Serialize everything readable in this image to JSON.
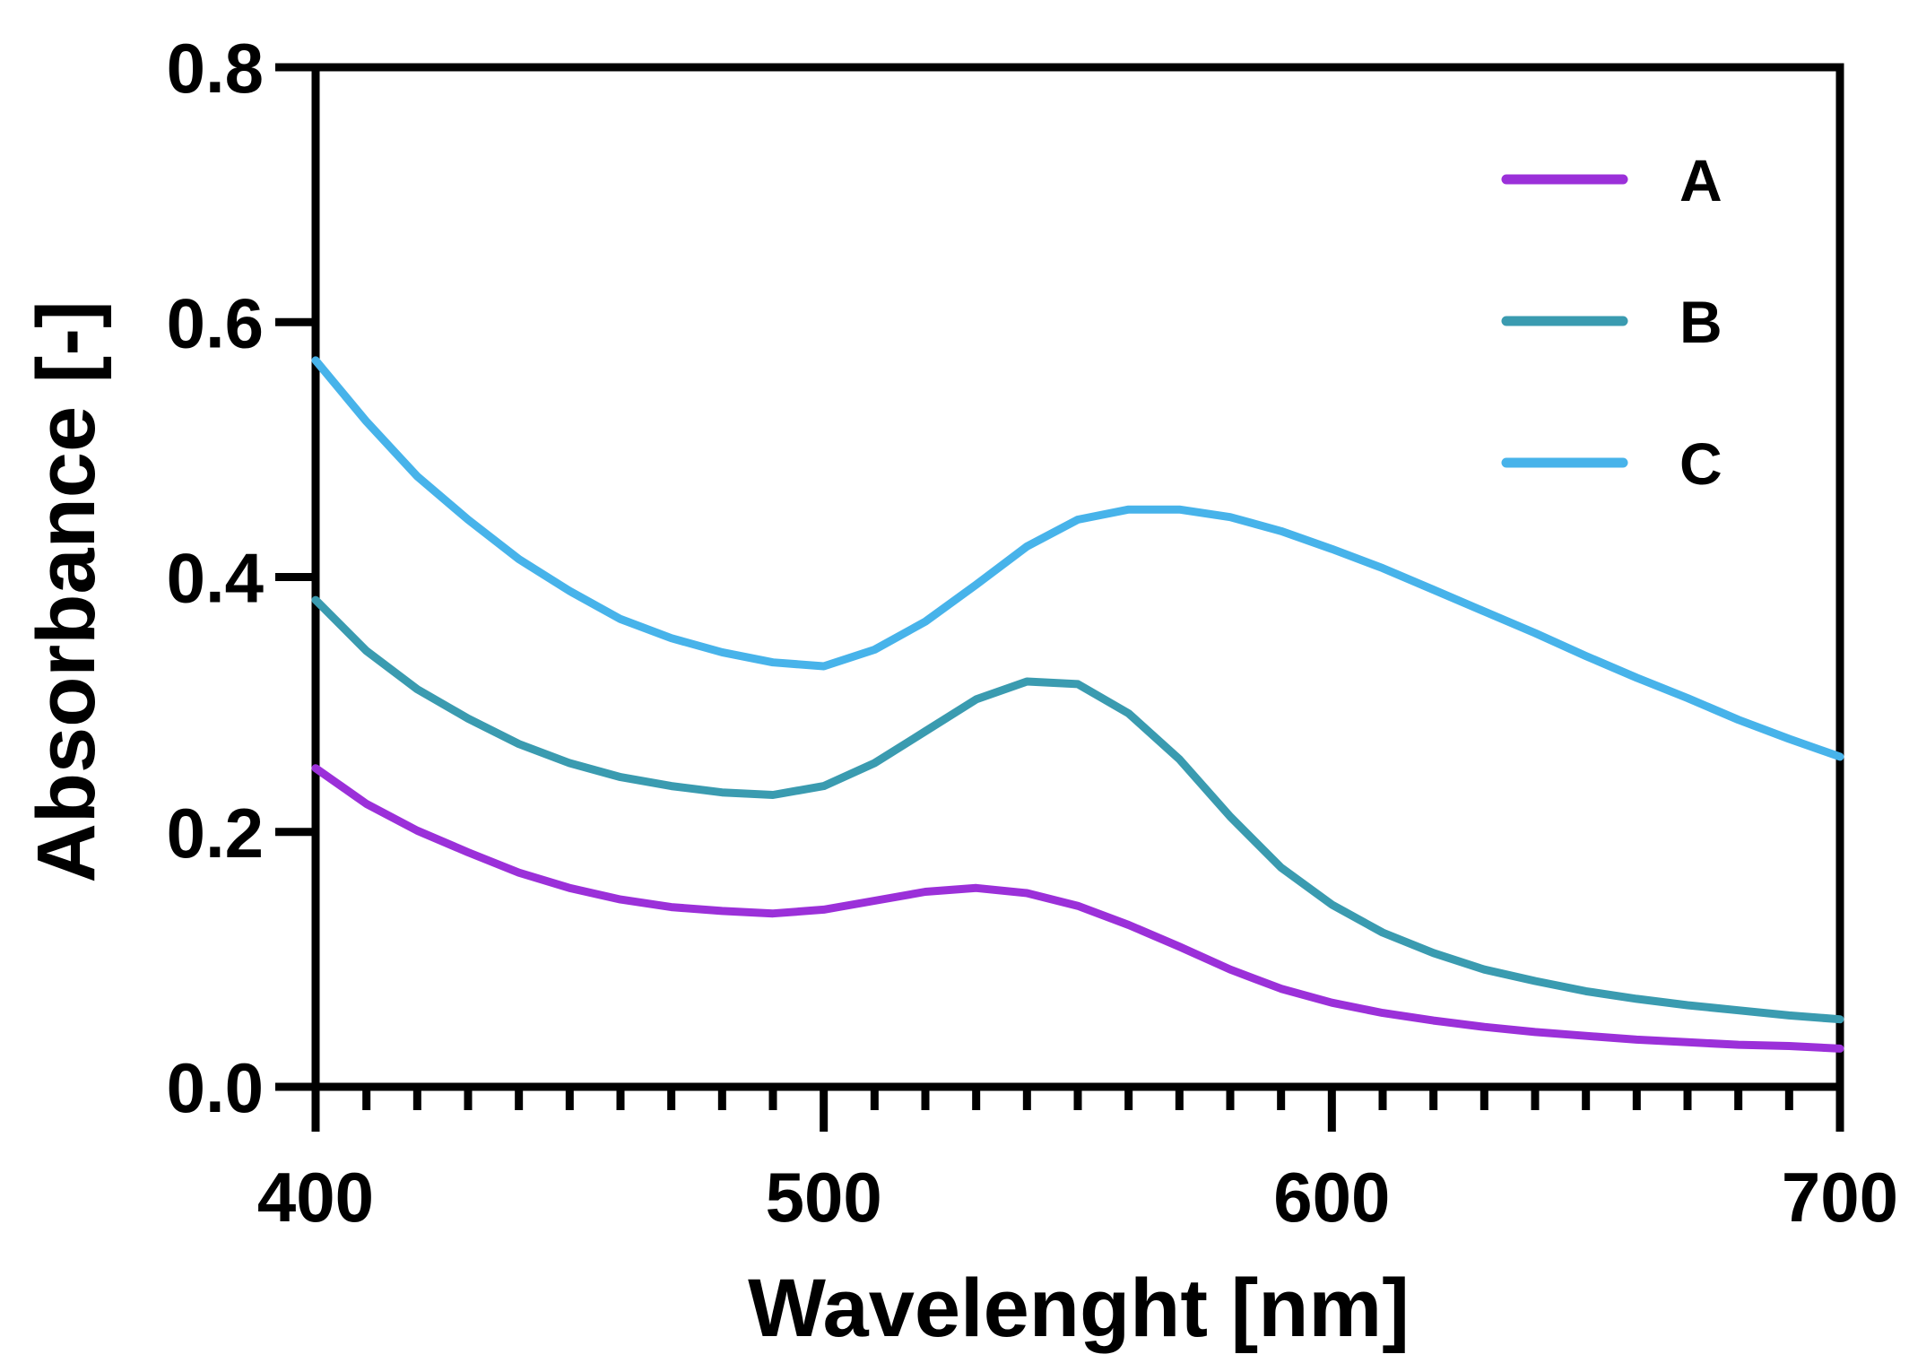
{
  "chart_data": {
    "type": "line",
    "title": "",
    "xlabel": "Wavelenght [nm]",
    "ylabel": "Absorbance [-]",
    "xlim": [
      400,
      700
    ],
    "ylim": [
      0.0,
      0.8
    ],
    "x_ticks": [
      400,
      500,
      600,
      700
    ],
    "x_tick_labels": [
      "400",
      "500",
      "600",
      "700"
    ],
    "x_minor_step": 10,
    "y_ticks": [
      0.0,
      0.2,
      0.4,
      0.6,
      0.8
    ],
    "y_tick_labels": [
      "0.0",
      "0.2",
      "0.4",
      "0.6",
      "0.8"
    ],
    "grid": false,
    "legend_position": "top-right",
    "series": [
      {
        "name": "A",
        "color": "#9b30d9",
        "x": [
          400,
          410,
          420,
          430,
          440,
          450,
          460,
          470,
          480,
          490,
          500,
          510,
          520,
          530,
          540,
          550,
          560,
          570,
          580,
          590,
          600,
          610,
          620,
          630,
          640,
          650,
          660,
          670,
          680,
          690,
          700
        ],
        "y": [
          0.25,
          0.222,
          0.201,
          0.184,
          0.168,
          0.156,
          0.147,
          0.141,
          0.138,
          0.136,
          0.139,
          0.146,
          0.153,
          0.156,
          0.152,
          0.142,
          0.127,
          0.11,
          0.092,
          0.077,
          0.066,
          0.058,
          0.052,
          0.047,
          0.043,
          0.04,
          0.037,
          0.035,
          0.033,
          0.032,
          0.03
        ]
      },
      {
        "name": "B",
        "color": "#3a9bb0",
        "x": [
          400,
          410,
          420,
          430,
          440,
          450,
          460,
          470,
          480,
          490,
          500,
          510,
          520,
          530,
          540,
          550,
          560,
          570,
          580,
          590,
          600,
          610,
          620,
          630,
          640,
          650,
          660,
          670,
          680,
          690,
          700
        ],
        "y": [
          0.382,
          0.342,
          0.312,
          0.289,
          0.269,
          0.254,
          0.243,
          0.236,
          0.231,
          0.229,
          0.236,
          0.254,
          0.279,
          0.304,
          0.318,
          0.316,
          0.293,
          0.257,
          0.212,
          0.172,
          0.143,
          0.121,
          0.105,
          0.092,
          0.083,
          0.075,
          0.069,
          0.064,
          0.06,
          0.056,
          0.053
        ]
      },
      {
        "name": "C",
        "color": "#47b3ea",
        "x": [
          400,
          410,
          420,
          430,
          440,
          450,
          460,
          470,
          480,
          490,
          500,
          510,
          520,
          530,
          540,
          550,
          560,
          570,
          580,
          590,
          600,
          610,
          620,
          630,
          640,
          650,
          660,
          670,
          680,
          690,
          700
        ],
        "y": [
          0.57,
          0.522,
          0.479,
          0.445,
          0.414,
          0.389,
          0.367,
          0.352,
          0.341,
          0.333,
          0.33,
          0.343,
          0.365,
          0.394,
          0.424,
          0.445,
          0.453,
          0.453,
          0.447,
          0.436,
          0.422,
          0.407,
          0.39,
          0.373,
          0.356,
          0.338,
          0.321,
          0.305,
          0.288,
          0.273,
          0.259
        ]
      }
    ]
  }
}
